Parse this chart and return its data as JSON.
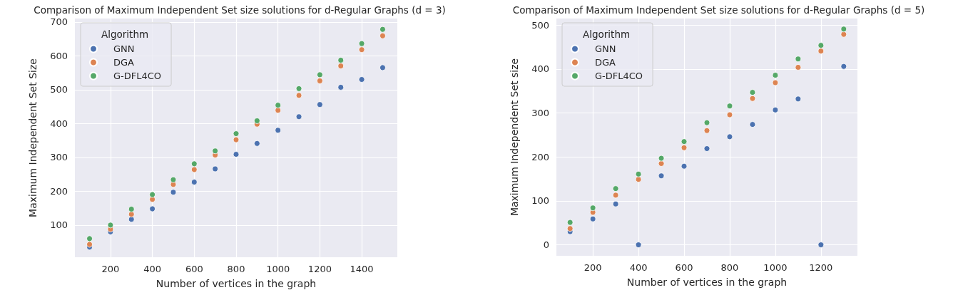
{
  "chart_data": [
    {
      "type": "scatter",
      "title": "Comparison of Maximum Independent Set size solutions for d-Regular Graphs (d = 3)",
      "xlabel": "Number of vertices in the graph",
      "ylabel": "Maximum Independent Set Size",
      "legend_title": "Algorithm",
      "x": [
        100,
        200,
        300,
        400,
        500,
        600,
        700,
        800,
        900,
        1000,
        1100,
        1200,
        1300,
        1400,
        1500
      ],
      "series": [
        {
          "name": "GNN",
          "color": "#4c72b0",
          "values": [
            35,
            80,
            117,
            148,
            197,
            227,
            266,
            309,
            341,
            380,
            420,
            456,
            507,
            530,
            565
          ]
        },
        {
          "name": "DGA",
          "color": "#dd8452",
          "values": [
            43,
            88,
            132,
            176,
            220,
            264,
            307,
            352,
            398,
            439,
            483,
            526,
            570,
            618,
            659
          ]
        },
        {
          "name": "G-DFL4CO",
          "color": "#55a868",
          "values": [
            60,
            100,
            147,
            190,
            234,
            281,
            319,
            370,
            408,
            454,
            503,
            544,
            587,
            636,
            678
          ]
        }
      ],
      "xlim": [
        30,
        1570
      ],
      "xticks": [
        200,
        400,
        600,
        800,
        1000,
        1200,
        1400
      ],
      "ylim": [
        5,
        710
      ],
      "yticks": [
        100,
        200,
        300,
        400,
        500,
        600,
        700
      ],
      "grid": true,
      "legend": "top left",
      "marker": "circle"
    },
    {
      "type": "scatter",
      "title": "Comparison of Maximum Independent Set size solutions for d-Regular Graphs (d = 5)",
      "xlabel": "Number of vertices in the graph",
      "ylabel": "Maximum Independent Set size",
      "legend_title": "Algorithm",
      "x": [
        100,
        200,
        300,
        400,
        500,
        600,
        700,
        800,
        900,
        1000,
        1100,
        1200,
        1300
      ],
      "series": [
        {
          "name": "GNN",
          "color": "#4c72b0",
          "values": [
            30,
            59,
            93,
            0,
            157,
            179,
            219,
            246,
            274,
            307,
            332,
            0,
            406
          ]
        },
        {
          "name": "DGA",
          "color": "#dd8452",
          "values": [
            37,
            74,
            113,
            149,
            185,
            221,
            260,
            296,
            333,
            369,
            404,
            441,
            479
          ]
        },
        {
          "name": "G-DFL4CO",
          "color": "#55a868",
          "values": [
            51,
            84,
            128,
            161,
            197,
            235,
            278,
            316,
            347,
            386,
            423,
            454,
            491
          ]
        }
      ],
      "xlim": [
        40,
        1360
      ],
      "xticks": [
        200,
        400,
        600,
        800,
        1000,
        1200
      ],
      "ylim": [
        -25,
        515
      ],
      "yticks": [
        0,
        100,
        200,
        300,
        400,
        500
      ],
      "grid": true,
      "legend": "top left",
      "marker": "circle"
    }
  ]
}
